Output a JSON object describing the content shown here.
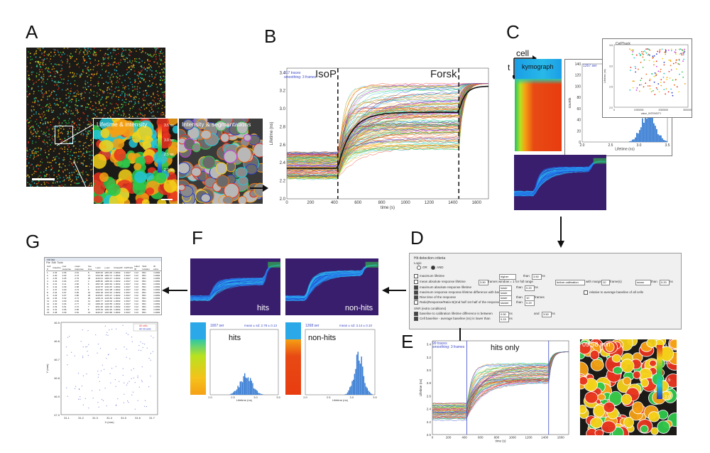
{
  "panel_labels": {
    "A": "A",
    "B": "B",
    "C": "C",
    "D": "D",
    "E": "E",
    "F": "F",
    "G": "G"
  },
  "colors": {
    "lifetime_low": "#2a3cc8",
    "lifetime_mid": "#2ec84a",
    "lifetime_high": "#e8321e",
    "kymo_bg": "#3a1e6e",
    "highlight": "#e23b3b"
  },
  "panel_a": {
    "lifetime_caption": "Lifetime & intensity",
    "segment_caption": "Intensity & segmentations",
    "colorbar_ticks": [
      "3.5 ns",
      "3.0 ns",
      "2.5 ns",
      "2.0 ns"
    ]
  },
  "panel_b": {
    "legend": [
      "317 traces",
      "smoothing: 3 frames"
    ],
    "marker_left": "IsoP",
    "marker_right": "Forsk",
    "ylabel": "Lifetime (ns)",
    "xlabel": "time (s)",
    "yticks": [
      "3.4",
      "3.2",
      "3.0",
      "2.8",
      "2.6",
      "2.4",
      "2.2",
      "2.0"
    ],
    "xticks": [
      "0",
      "200",
      "400",
      "600",
      "800",
      "1000",
      "1200",
      "1400",
      "1600"
    ]
  },
  "panel_c": {
    "cell_label": "cell",
    "t_label": "t",
    "kymo_label": "kymograph",
    "hist_note": "1267 ser",
    "hist_yticks": [
      "140",
      "120",
      "100",
      "80",
      "60",
      "40",
      "20",
      "0"
    ],
    "hist_xticks": [
      "2.0",
      "2.5",
      "3.0",
      "3.5"
    ],
    "hist_xlabel": "Lifetime (ns)",
    "hist_ylabel": "counts",
    "scatter_note": "CellTrack",
    "scatter_xticks": [
      "0",
      "1000000",
      "2000000",
      "3000000"
    ],
    "scatter_xlabel": "value_INTENSITY",
    "scatter_yticks": [
      "3.5",
      "3.0",
      "2.5",
      "2.0"
    ],
    "scatter_ylabel": "Lifetime (ns)"
  },
  "panel_d": {
    "title": "Hit detection criteria",
    "logic_label": "Logic",
    "logic_opts": [
      "OR",
      "AND"
    ],
    "rows": [
      "maximum lifetime",
      "mean absolute response lifetime",
      "maximum absolute response lifetime",
      "maximum response response lifetime difference with baseline",
      "Rise time of the response",
      "Ratio(Response/Ratio B(2nd half 1st half of the response))",
      "SNR (extra conditions)",
      "baseline to calibration lifetime difference is between",
      "Cell baseline - average baseline (ns) is lower than"
    ],
    "dropdowns": [
      "higher",
      "lower",
      "lower",
      "lower",
      "slower",
      "lower"
    ],
    "than_label": "than",
    "values": [
      "3.50",
      "3.50",
      "0.20",
      "10",
      "0.20",
      "0.50",
      "0.15"
    ],
    "units": [
      "ns",
      "ns",
      "ns",
      "frames",
      "ns",
      "ns"
    ],
    "window_text": "frames window = 1 for full range",
    "calibration_dd": "before calibration",
    "margin_label": "with margin",
    "margin_unit": "frame(s)",
    "mean_dd": "mean",
    "relative_label": "relative to average baseline of all cells",
    "and_label": "and"
  },
  "panel_e": {
    "legend": [
      "99 traces",
      "smoothing: 3 frames"
    ],
    "title": "hits only",
    "ylabel": "Lifetime (ns)",
    "xlabel": "time (s)",
    "yticks": [
      "3.4",
      "3.2",
      "3.0",
      "2.8",
      "2.6",
      "2.4",
      "2.2",
      "2.0"
    ],
    "xticks": [
      "0",
      "200",
      "400",
      "600",
      "800",
      "1000",
      "1200",
      "1400",
      "1600"
    ],
    "micro_time": "09:58 min",
    "colorbar_ticks": [
      "3.5",
      "3.0",
      "2.5",
      "2.0"
    ]
  },
  "panel_f": {
    "hits_label": "hits",
    "nonhits_label": "non-hits",
    "hits_hist_title": "hits",
    "nonhits_hist_title": "non-hits",
    "hits_note": "1007 ser",
    "hits_mean": "mean ± sd: 2.78 ± 0.13",
    "nonhits_note": "1268 ser",
    "nonhits_mean": "mean ± sd: 3.14 ± 0.10",
    "hist_xticks": [
      "2.0",
      "2.5",
      "3.0",
      "3.5"
    ],
    "hist_xlabel": "Lifetime (ns)"
  },
  "panel_g": {
    "table_title": "Hit list",
    "menu": [
      "File",
      "Edit",
      "Tools"
    ],
    "headers": [
      "Cell #",
      "baseline",
      "max response",
      "mean response",
      "rise time",
      "x-pos",
      "y-pos",
      "UniqueID",
      "CellTrack",
      "Label ID",
      "Well location",
      "ID extra"
    ],
    "rows": [
      [
        "1",
        "2.33",
        "2.96",
        "2.61",
        "8",
        "1165.29",
        "1204.40",
        "1-0002",
        "1.0017",
        "3.12",
        "B01",
        "1.0082"
      ],
      [
        "2",
        "2.30",
        "3.02",
        "2.73",
        "17",
        "1313.83",
        "1202.71",
        "1-0002",
        "1.0017",
        "3.12",
        "B01",
        "1.0082"
      ],
      [
        "3",
        "2.35",
        "3.05",
        "2.79",
        "25",
        "1126.01",
        "1206.47",
        "1-0002",
        "1.0017",
        "3.12",
        "B01",
        "1.0082"
      ],
      [
        "4",
        "2.33",
        "2.94",
        "2.57",
        "4",
        "1188.36",
        "1208.19",
        "1-0002",
        "1.0017",
        "3.12",
        "B01",
        "1.0082"
      ],
      [
        "5",
        "2.31",
        "3.11",
        "2.82",
        "8",
        "1097.18",
        "1209.62",
        "1-0002",
        "1.0017",
        "3.12",
        "B01",
        "1.0082"
      ],
      [
        "6",
        "2.42",
        "2.99",
        "2.68",
        "1",
        "1210.57",
        "1211.05",
        "1-0002",
        "1.0017",
        "3.12",
        "B01",
        "1.0082"
      ],
      [
        "7",
        "2.37",
        "3.00",
        "2.74",
        "8",
        "1144.92",
        "1212.38",
        "1-0002",
        "1.0017",
        "3.12",
        "B01",
        "1.0082"
      ],
      [
        "8",
        "2.34",
        "2.97",
        "2.66",
        "16",
        "1262.40",
        "1213.91",
        "1-0002",
        "1.0017",
        "3.12",
        "B01",
        "1.0082"
      ],
      [
        "9",
        "2.29",
        "3.07",
        "2.80",
        "25",
        "1118.65",
        "1215.27",
        "1-0002",
        "1.0017",
        "3.12",
        "B01",
        "1.0082"
      ],
      [
        "10",
        "2.36",
        "3.02",
        "2.71",
        "20",
        "1239.13",
        "1216.84",
        "1-0002",
        "1.0017",
        "3.12",
        "B01",
        "1.0082"
      ],
      [
        "11",
        "2.32",
        "2.93",
        "2.63",
        "11",
        "1182.77",
        "1218.02",
        "1-0002",
        "1.0017",
        "3.12",
        "B01",
        "1.0082"
      ],
      [
        "12",
        "2.40",
        "3.04",
        "2.77",
        "14",
        "1306.20",
        "1219.55",
        "1-0002",
        "1.0017",
        "3.12",
        "B01",
        "1.0082"
      ],
      [
        "13",
        "2.33",
        "3.01",
        "2.72",
        "7",
        "1151.48",
        "1220.93",
        "1-0002",
        "1.0017",
        "3.12",
        "B01",
        "1.0082"
      ],
      [
        "14",
        "2.31",
        "2.96",
        "2.65",
        "8",
        "1275.64",
        "1222.40",
        "1-0002",
        "1.0017",
        "3.12",
        "B01",
        "1.0082"
      ],
      [
        "15",
        "2.38",
        "3.09",
        "2.81",
        "12",
        "1129.37",
        "1223.86",
        "1-0002",
        "1.0017",
        "3.12",
        "B01",
        "1.0082"
      ]
    ],
    "legend": [
      "All cells",
      "All hit cells"
    ],
    "ylabel": "Y (mm)",
    "xlabel": "X (mm)",
    "yticks": [
      "46.5",
      "46.6",
      "46.7",
      "46.8",
      "46.9",
      "47.0"
    ],
    "xticks": [
      "31.1",
      "31.2",
      "31.3",
      "31.4",
      "31.5",
      "31.6",
      "31.7"
    ]
  }
}
